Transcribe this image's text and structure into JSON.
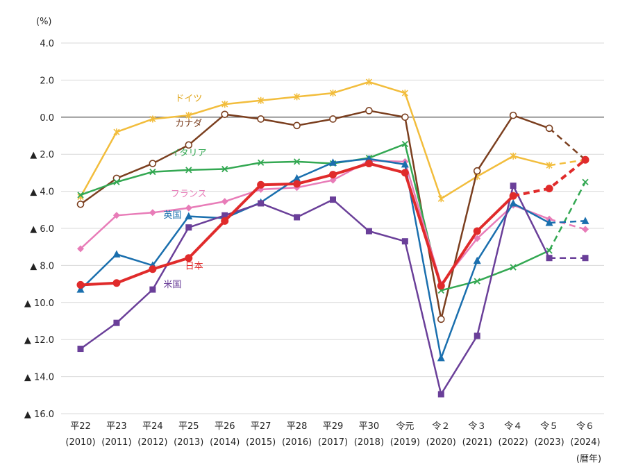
{
  "chart_data": {
    "type": "line",
    "y_unit_label": "(%)",
    "x_axis_suffix": "(暦年)",
    "ylim": [
      -16,
      4
    ],
    "y_ticks": [
      {
        "value": 4,
        "label": "4.0"
      },
      {
        "value": 2,
        "label": "2.0"
      },
      {
        "value": 0,
        "label": "0.0"
      },
      {
        "value": -2,
        "label": "▲ 2.0"
      },
      {
        "value": -4,
        "label": "▲ 4.0"
      },
      {
        "value": -6,
        "label": "▲ 6.0"
      },
      {
        "value": -8,
        "label": "▲ 8.0"
      },
      {
        "value": -10,
        "label": "▲ 10.0"
      },
      {
        "value": -12,
        "label": "▲ 12.0"
      },
      {
        "value": -14,
        "label": "▲ 14.0"
      },
      {
        "value": -16,
        "label": "▲ 16.0"
      }
    ],
    "categories": [
      {
        "era": "平22",
        "year": "(2010)"
      },
      {
        "era": "平23",
        "year": "(2011)"
      },
      {
        "era": "平24",
        "year": "(2012)"
      },
      {
        "era": "平25",
        "year": "(2013)"
      },
      {
        "era": "平26",
        "year": "(2014)"
      },
      {
        "era": "平27",
        "year": "(2015)"
      },
      {
        "era": "平28",
        "year": "(2016)"
      },
      {
        "era": "平29",
        "year": "(2017)"
      },
      {
        "era": "平30",
        "year": "(2018)"
      },
      {
        "era": "令元",
        "year": "(2019)"
      },
      {
        "era": "令２",
        "year": "(2020)"
      },
      {
        "era": "令３",
        "year": "(2021)"
      },
      {
        "era": "令４",
        "year": "(2022)"
      },
      {
        "era": "令５",
        "year": "(2023)"
      },
      {
        "era": "令６",
        "year": "(2024)"
      }
    ],
    "series": [
      {
        "name": "ドイツ",
        "color": "#f2bd3c",
        "marker": "asterisk",
        "width": 2.5,
        "values": [
          -4.3,
          -0.8,
          -0.1,
          0.1,
          0.7,
          0.9,
          1.1,
          1.3,
          1.9,
          1.3,
          -4.4,
          -3.2,
          -2.1,
          -2.6,
          -2.3
        ],
        "dashed_from": 13
      },
      {
        "name": "カナダ",
        "color": "#7b3f1f",
        "marker": "circle-open",
        "width": 2.5,
        "values": [
          -4.7,
          -3.3,
          -2.5,
          -1.5,
          0.15,
          -0.1,
          -0.45,
          -0.1,
          0.35,
          0.0,
          -10.9,
          -2.9,
          0.1,
          -0.6,
          -2.3
        ],
        "dashed_from": 13
      },
      {
        "name": "イタリア",
        "color": "#33a852",
        "marker": "x",
        "width": 2.5,
        "values": [
          -4.2,
          -3.5,
          -2.95,
          -2.85,
          -2.8,
          -2.45,
          -2.4,
          -2.5,
          -2.2,
          -1.45,
          -9.35,
          -8.85,
          -8.1,
          -7.2,
          -3.5
        ],
        "dashed_from": 13
      },
      {
        "name": "フランス",
        "color": "#e87cb8",
        "marker": "diamond",
        "width": 2.5,
        "values": [
          -7.1,
          -5.3,
          -5.15,
          -4.9,
          -4.55,
          -3.9,
          -3.8,
          -3.4,
          -2.35,
          -2.4,
          -9.0,
          -6.55,
          -4.75,
          -5.5,
          -6.05
        ],
        "dashed_from": 13
      },
      {
        "name": "英国",
        "color": "#1a6fae",
        "marker": "triangle",
        "width": 2.5,
        "values": [
          -9.3,
          -7.4,
          -8.0,
          -5.35,
          -5.45,
          -4.6,
          -3.3,
          -2.45,
          -2.25,
          -2.55,
          -13.0,
          -7.75,
          -4.65,
          -5.7,
          -5.6
        ],
        "dashed_from": 13
      },
      {
        "name": "米国",
        "color": "#6a3f99",
        "marker": "square",
        "width": 2.5,
        "values": [
          -12.5,
          -11.1,
          -9.3,
          -5.95,
          -5.3,
          -4.65,
          -5.4,
          -4.45,
          -6.15,
          -6.7,
          -14.95,
          -11.8,
          -3.7,
          -7.6,
          -7.6
        ],
        "dashed_from": 13
      },
      {
        "name": "日本",
        "color": "#e02b2b",
        "marker": "circle-filled",
        "width": 4,
        "values": [
          -9.05,
          -8.95,
          -8.2,
          -7.6,
          -5.6,
          -3.65,
          -3.6,
          -3.1,
          -2.5,
          -3.0,
          -9.1,
          -6.15,
          -4.25,
          -3.85,
          -2.3
        ],
        "dashed_from": 12
      }
    ],
    "labels": [
      {
        "text": "ドイツ",
        "color": "#e0a61a",
        "x_index": 3.0,
        "y": 1.05
      },
      {
        "text": "カナダ",
        "color": "#7b3f1f",
        "x_index": 3.0,
        "y": -0.3
      },
      {
        "text": "イタリア",
        "color": "#33a852",
        "x_index": 3.0,
        "y": -1.9
      },
      {
        "text": "フランス",
        "color": "#e87cb8",
        "x_index": 3.0,
        "y": -4.1
      },
      {
        "text": "英国",
        "color": "#1a6fae",
        "x_index": 2.55,
        "y": -5.25
      },
      {
        "text": "日本",
        "color": "#e02b2b",
        "x_index": 3.15,
        "y": -8.0
      },
      {
        "text": "米国",
        "color": "#6a3f99",
        "x_index": 2.55,
        "y": -9.0
      }
    ]
  }
}
